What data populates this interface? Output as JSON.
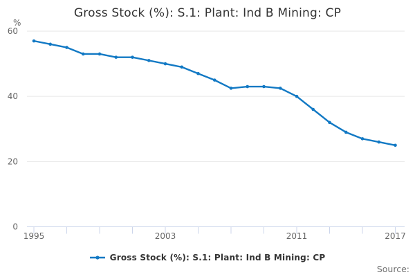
{
  "title": "Gross Stock (%): S.1: Plant: Ind B Mining: CP",
  "y_axis_unit": "%",
  "legend": {
    "label": "Gross Stock (%): S.1: Plant: Ind B Mining: CP"
  },
  "source_label": "Source:",
  "colors": {
    "line": "#1279c4",
    "grid": "#e6e6e6",
    "axis": "#ccd6eb",
    "tick_text": "#666666",
    "title_text": "#333333",
    "legend_text": "#333333",
    "source_text": "#707070"
  },
  "chart_data": {
    "type": "line",
    "title": "Gross Stock (%): S.1: Plant: Ind B Mining: CP",
    "ylabel": "%",
    "ylim": [
      0,
      60
    ],
    "yticks": [
      0,
      20,
      40,
      60
    ],
    "x": [
      1995,
      1996,
      1997,
      1998,
      1999,
      2000,
      2001,
      2002,
      2003,
      2004,
      2005,
      2006,
      2007,
      2008,
      2009,
      2010,
      2011,
      2012,
      2013,
      2014,
      2015,
      2016,
      2017
    ],
    "series": [
      {
        "name": "Gross Stock (%): S.1: Plant: Ind B Mining: CP",
        "values": [
          57,
          56,
          55,
          53,
          53,
          52,
          52,
          51,
          50,
          49,
          47,
          45,
          42.5,
          43,
          43,
          42.5,
          40,
          36,
          32,
          29,
          27,
          26,
          25
        ]
      }
    ],
    "xticks_minor": [
      1995,
      1997,
      1999,
      2001,
      2003,
      2005,
      2007,
      2009,
      2011,
      2013,
      2015,
      2017
    ],
    "xticks_labeled": [
      1995,
      2003,
      2011,
      2017
    ],
    "grid": "horizontal",
    "legend_position": "bottom",
    "marker": "dot"
  }
}
